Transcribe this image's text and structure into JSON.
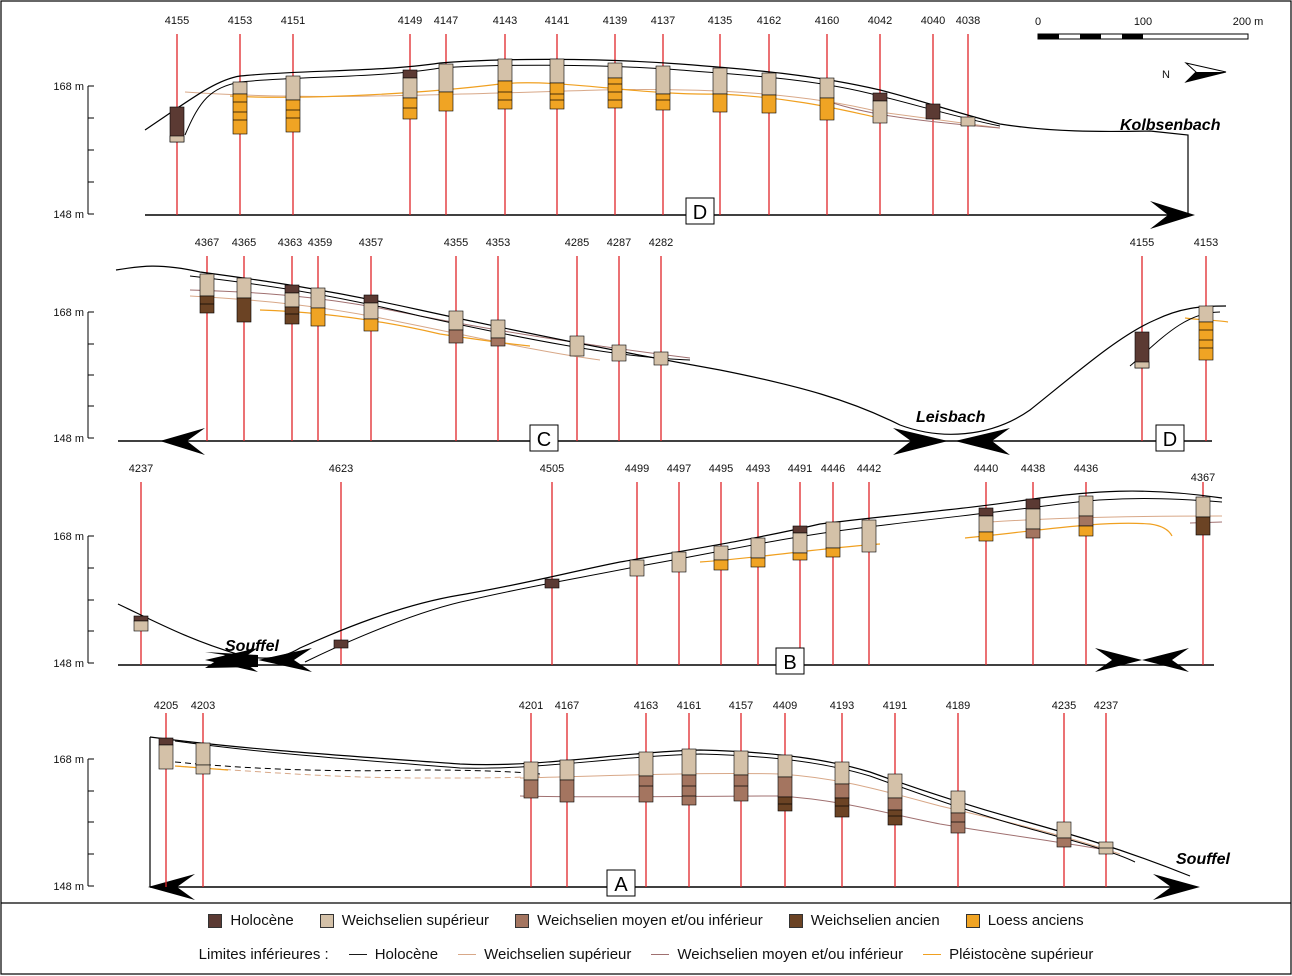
{
  "sections": [
    {
      "id": "D",
      "letter": "D",
      "y_top_label": "168 m",
      "y_bottom_label": "148 m",
      "boreholes": [
        "4155",
        "4153",
        "4151",
        "4149",
        "4147",
        "4143",
        "4141",
        "4139",
        "4137",
        "4135",
        "4162",
        "4160",
        "4042",
        "4040",
        "4038"
      ],
      "river": "Kolbsenbach"
    },
    {
      "id": "C",
      "letter": "C",
      "letter_right": "D",
      "y_top_label": "168 m",
      "y_bottom_label": "148 m",
      "boreholes": [
        "4367",
        "4365",
        "4363",
        "4359",
        "4357",
        "4355",
        "4353",
        "4285",
        "4287",
        "4282",
        "4155",
        "4153"
      ],
      "river": "Leisbach"
    },
    {
      "id": "B",
      "letter": "B",
      "y_top_label": "168 m",
      "y_bottom_label": "148 m",
      "boreholes": [
        "4237",
        "4623",
        "4505",
        "4499",
        "4497",
        "4495",
        "4493",
        "4491",
        "4446",
        "4442",
        "4440",
        "4438",
        "4436",
        "4367"
      ],
      "river": "Souffel"
    },
    {
      "id": "A",
      "letter": "A",
      "y_top_label": "168 m",
      "y_bottom_label": "148 m",
      "boreholes": [
        "4205",
        "4203",
        "4201",
        "4167",
        "4163",
        "4161",
        "4157",
        "4409",
        "4193",
        "4191",
        "4189",
        "4235",
        "4237"
      ],
      "river": "Souffel"
    }
  ],
  "scale_bar": {
    "labels": [
      "0",
      "100",
      "200 m"
    ]
  },
  "north": "N",
  "legend": {
    "units": [
      {
        "label": "Holocène",
        "color": "#5b3a33"
      },
      {
        "label": "Weichselien supérieur",
        "color": "#d4c1a8"
      },
      {
        "label": "Weichselien moyen et/ou inférieur",
        "color": "#a47560"
      },
      {
        "label": "Weichselien ancien",
        "color": "#6b4324"
      },
      {
        "label": "Loess anciens",
        "color": "#f0a424"
      }
    ],
    "limits_title": "Limites inférieures :",
    "limits": [
      {
        "label": "Holocène",
        "color": "#1a1a1a"
      },
      {
        "label": "Weichselien supérieur",
        "color": "#d8a888"
      },
      {
        "label": "Weichselien moyen et/ou inférieur",
        "color": "#a07070"
      },
      {
        "label": "Pléistocène supérieur",
        "color": "#f0a020"
      }
    ]
  },
  "colors": {
    "borehole_line": "#e0252a"
  }
}
